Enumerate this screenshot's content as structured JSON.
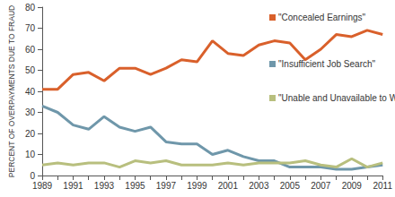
{
  "chart_data": {
    "type": "line",
    "y_label": "PERCENT OF OVERPAYMENTS DUE TO FRAUD",
    "categories": [
      "1989",
      null,
      "1991",
      null,
      "1993",
      null,
      "1995",
      null,
      "1997",
      null,
      "1999",
      null,
      "2001",
      null,
      "2003",
      null,
      "2005",
      null,
      "2007",
      null,
      "2009",
      null,
      "2011"
    ],
    "series": [
      {
        "name": "\"Concealed Earnings\"",
        "color": "#d9602b",
        "values": [
          41,
          41,
          48,
          49,
          45,
          51,
          51,
          48,
          51,
          55,
          54,
          64,
          58,
          57,
          62,
          64,
          63,
          55,
          60,
          67,
          66,
          69,
          67
        ]
      },
      {
        "name": "\"Insufficient Job Search\"",
        "color": "#6f97aa",
        "values": [
          33,
          30,
          24,
          22,
          28,
          23,
          21,
          23,
          16,
          15,
          15,
          10,
          12,
          9,
          7,
          7,
          4,
          4,
          4,
          3,
          3,
          4,
          5
        ]
      },
      {
        "name": "\"Unable and Unavailable to Work\"",
        "color": "#b8bf7e",
        "values": [
          5,
          6,
          5,
          6,
          6,
          4,
          7,
          6,
          7,
          5,
          5,
          5,
          6,
          5,
          6,
          6,
          6,
          7,
          5,
          4,
          8,
          4,
          6
        ]
      }
    ],
    "ylim": [
      0,
      80
    ],
    "yticks": [
      0,
      10,
      20,
      30,
      40,
      50,
      60,
      70,
      80
    ],
    "grid": false
  }
}
